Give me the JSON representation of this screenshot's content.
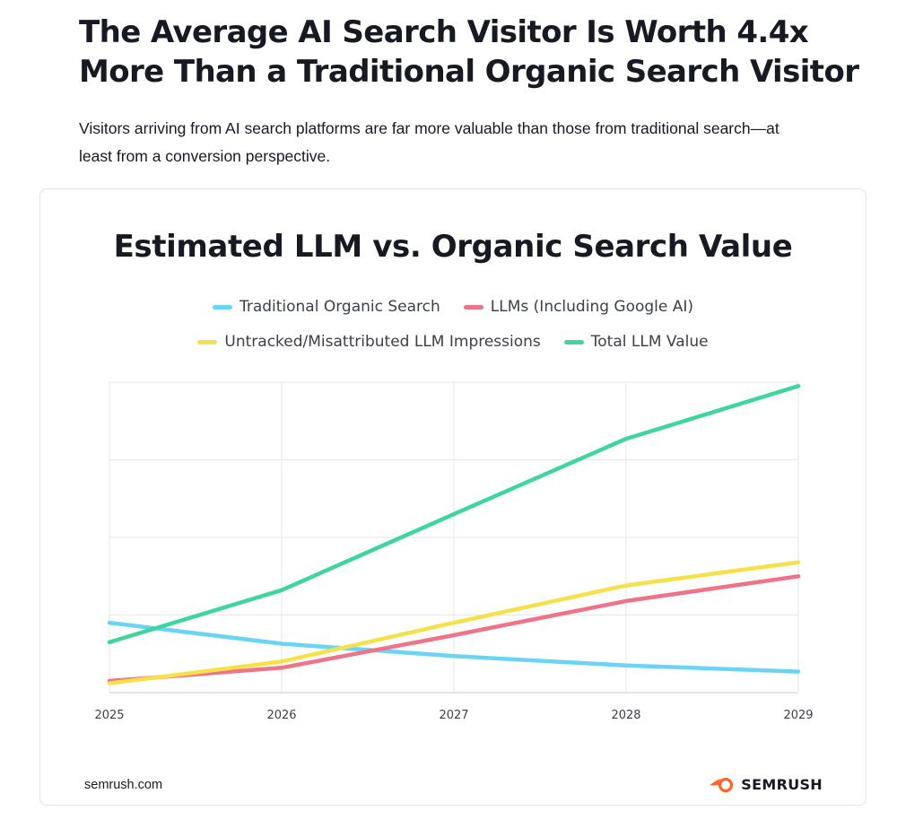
{
  "article": {
    "headline_line1": "The Average AI Search Visitor Is Worth 4.4x",
    "headline_line2": "More Than a Traditional Organic Search Visitor",
    "intro_line1": "Visitors arriving from AI search platforms are far more valuable than those from traditional search—at",
    "intro_line2": "least from a conversion perspective."
  },
  "chart_data": {
    "type": "line",
    "title": "Estimated LLM vs. Organic Search Value",
    "x": [
      "2025",
      "2026",
      "2027",
      "2028",
      "2029"
    ],
    "ylim": [
      0,
      4
    ],
    "grid": true,
    "legend_position": "top",
    "series": [
      {
        "name": "Traditional Organic Search",
        "color": "#6ad4f5",
        "values": [
          0.9,
          0.63,
          0.47,
          0.35,
          0.27
        ]
      },
      {
        "name": "LLMs (Including Google AI)",
        "color": "#ef7389",
        "values": [
          0.15,
          0.32,
          0.74,
          1.18,
          1.5
        ]
      },
      {
        "name": "Untracked/Misattributed LLM Impressions",
        "color": "#f7e14a",
        "values": [
          0.12,
          0.4,
          0.9,
          1.38,
          1.68
        ]
      },
      {
        "name": "Total LLM Value",
        "color": "#3fd69e",
        "values": [
          0.65,
          1.32,
          2.3,
          3.27,
          3.95
        ]
      }
    ]
  },
  "footer": {
    "source": "semrush.com",
    "brand": "SEMRUSH",
    "brand_icon": "semrush-fire-icon",
    "brand_color": "#ff642d"
  }
}
